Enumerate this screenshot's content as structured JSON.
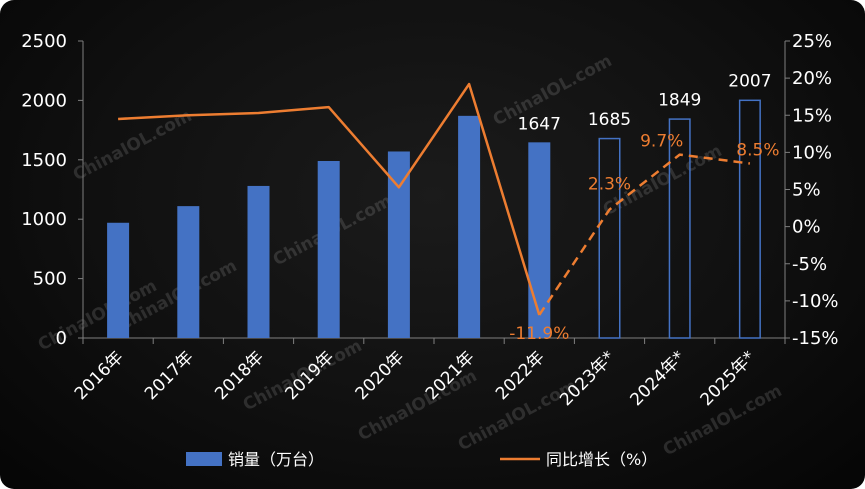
{
  "chart_data": {
    "type": "bar",
    "categories": [
      "2016年",
      "2017年",
      "2018年",
      "2019年",
      "2020年",
      "2021年",
      "2022年",
      "2023年*",
      "2024年*",
      "2025年*"
    ],
    "series": [
      {
        "name": "销量（万台）",
        "type": "bar",
        "axis": "left",
        "values": [
          970,
          1110,
          1280,
          1490,
          1570,
          1870,
          1647,
          1685,
          1849,
          2007
        ],
        "forecast": [
          false,
          false,
          false,
          false,
          false,
          false,
          false,
          true,
          true,
          true
        ],
        "value_labels": [
          "",
          "",
          "",
          "",
          "",
          "",
          "1647",
          "1685",
          "1849",
          "2007"
        ]
      },
      {
        "name": "同比增长（%）",
        "type": "line",
        "axis": "right",
        "values": [
          14.5,
          15.0,
          15.3,
          16.1,
          5.3,
          19.2,
          -11.9,
          2.3,
          9.7,
          8.5
        ],
        "forecast_from_index": 6,
        "value_labels": [
          "",
          "",
          "",
          "",
          "",
          "",
          "-11.9%",
          "2.3%",
          "9.7%",
          "8.5%"
        ]
      }
    ],
    "y_left": {
      "min": 0,
      "max": 2500,
      "step": 500,
      "tick_labels": [
        "0",
        "500",
        "1000",
        "1500",
        "2000",
        "2500"
      ]
    },
    "y_right": {
      "min": -15,
      "max": 25,
      "step": 5,
      "tick_labels": [
        "-15%",
        "-10%",
        "-5%",
        "0%",
        "5%",
        "10%",
        "15%",
        "20%",
        "25%"
      ]
    },
    "title": "",
    "xlabel": "",
    "ylabel": "",
    "grid": false,
    "legend_position": "bottom",
    "colors": {
      "bar": "#4472C4",
      "line": "#ED7D31",
      "axis": "#7f7f7f",
      "text": "#ffffff"
    },
    "watermark": "ChinaIOL.com"
  }
}
